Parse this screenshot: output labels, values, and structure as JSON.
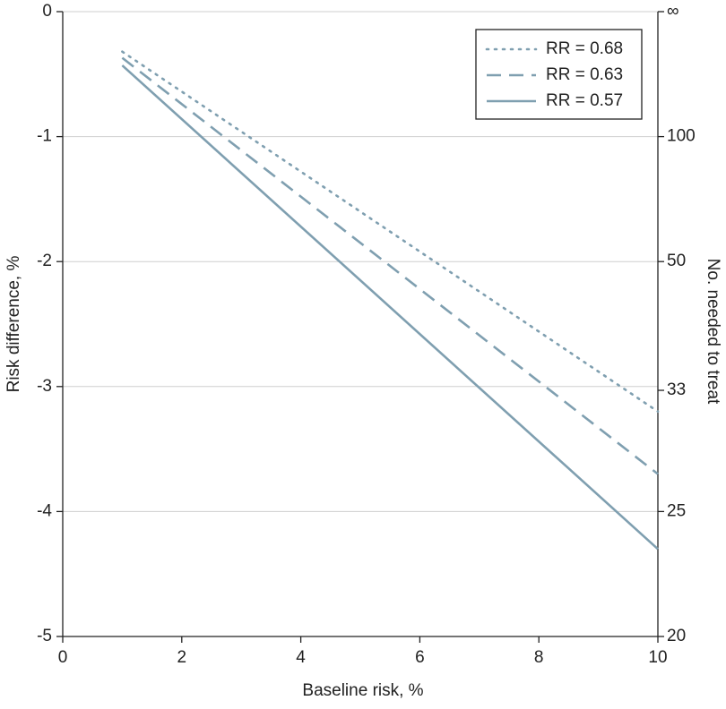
{
  "chart_data": {
    "type": "line",
    "x_label": "Baseline risk, %",
    "y_label": "Risk difference, %",
    "y2_label": "No. needed to treat",
    "x": [
      1,
      10
    ],
    "series": [
      {
        "name": "RR = 0.68",
        "color": "#7f9fb0",
        "dash": "dotted",
        "values": [
          -0.32,
          -3.2
        ]
      },
      {
        "name": "RR = 0.63",
        "color": "#7f9fb0",
        "dash": "dashed",
        "values": [
          -0.37,
          -3.7
        ]
      },
      {
        "name": "RR = 0.57",
        "color": "#7f9fb0",
        "dash": "solid",
        "values": [
          -0.43,
          -4.3
        ]
      }
    ],
    "xlim": [
      0,
      10
    ],
    "xticks": [
      0,
      2,
      4,
      6,
      8,
      10
    ],
    "ylim": [
      -5,
      0
    ],
    "yticks": [
      0,
      -1,
      -2,
      -3,
      -4,
      -5
    ],
    "y2_scale": "reciprocal",
    "y2lim": [
      20,
      null
    ],
    "y2ticks": [
      {
        "value": null,
        "label": "∞"
      },
      100,
      50,
      33,
      25,
      20
    ],
    "grid": true,
    "legend": "upper right"
  }
}
